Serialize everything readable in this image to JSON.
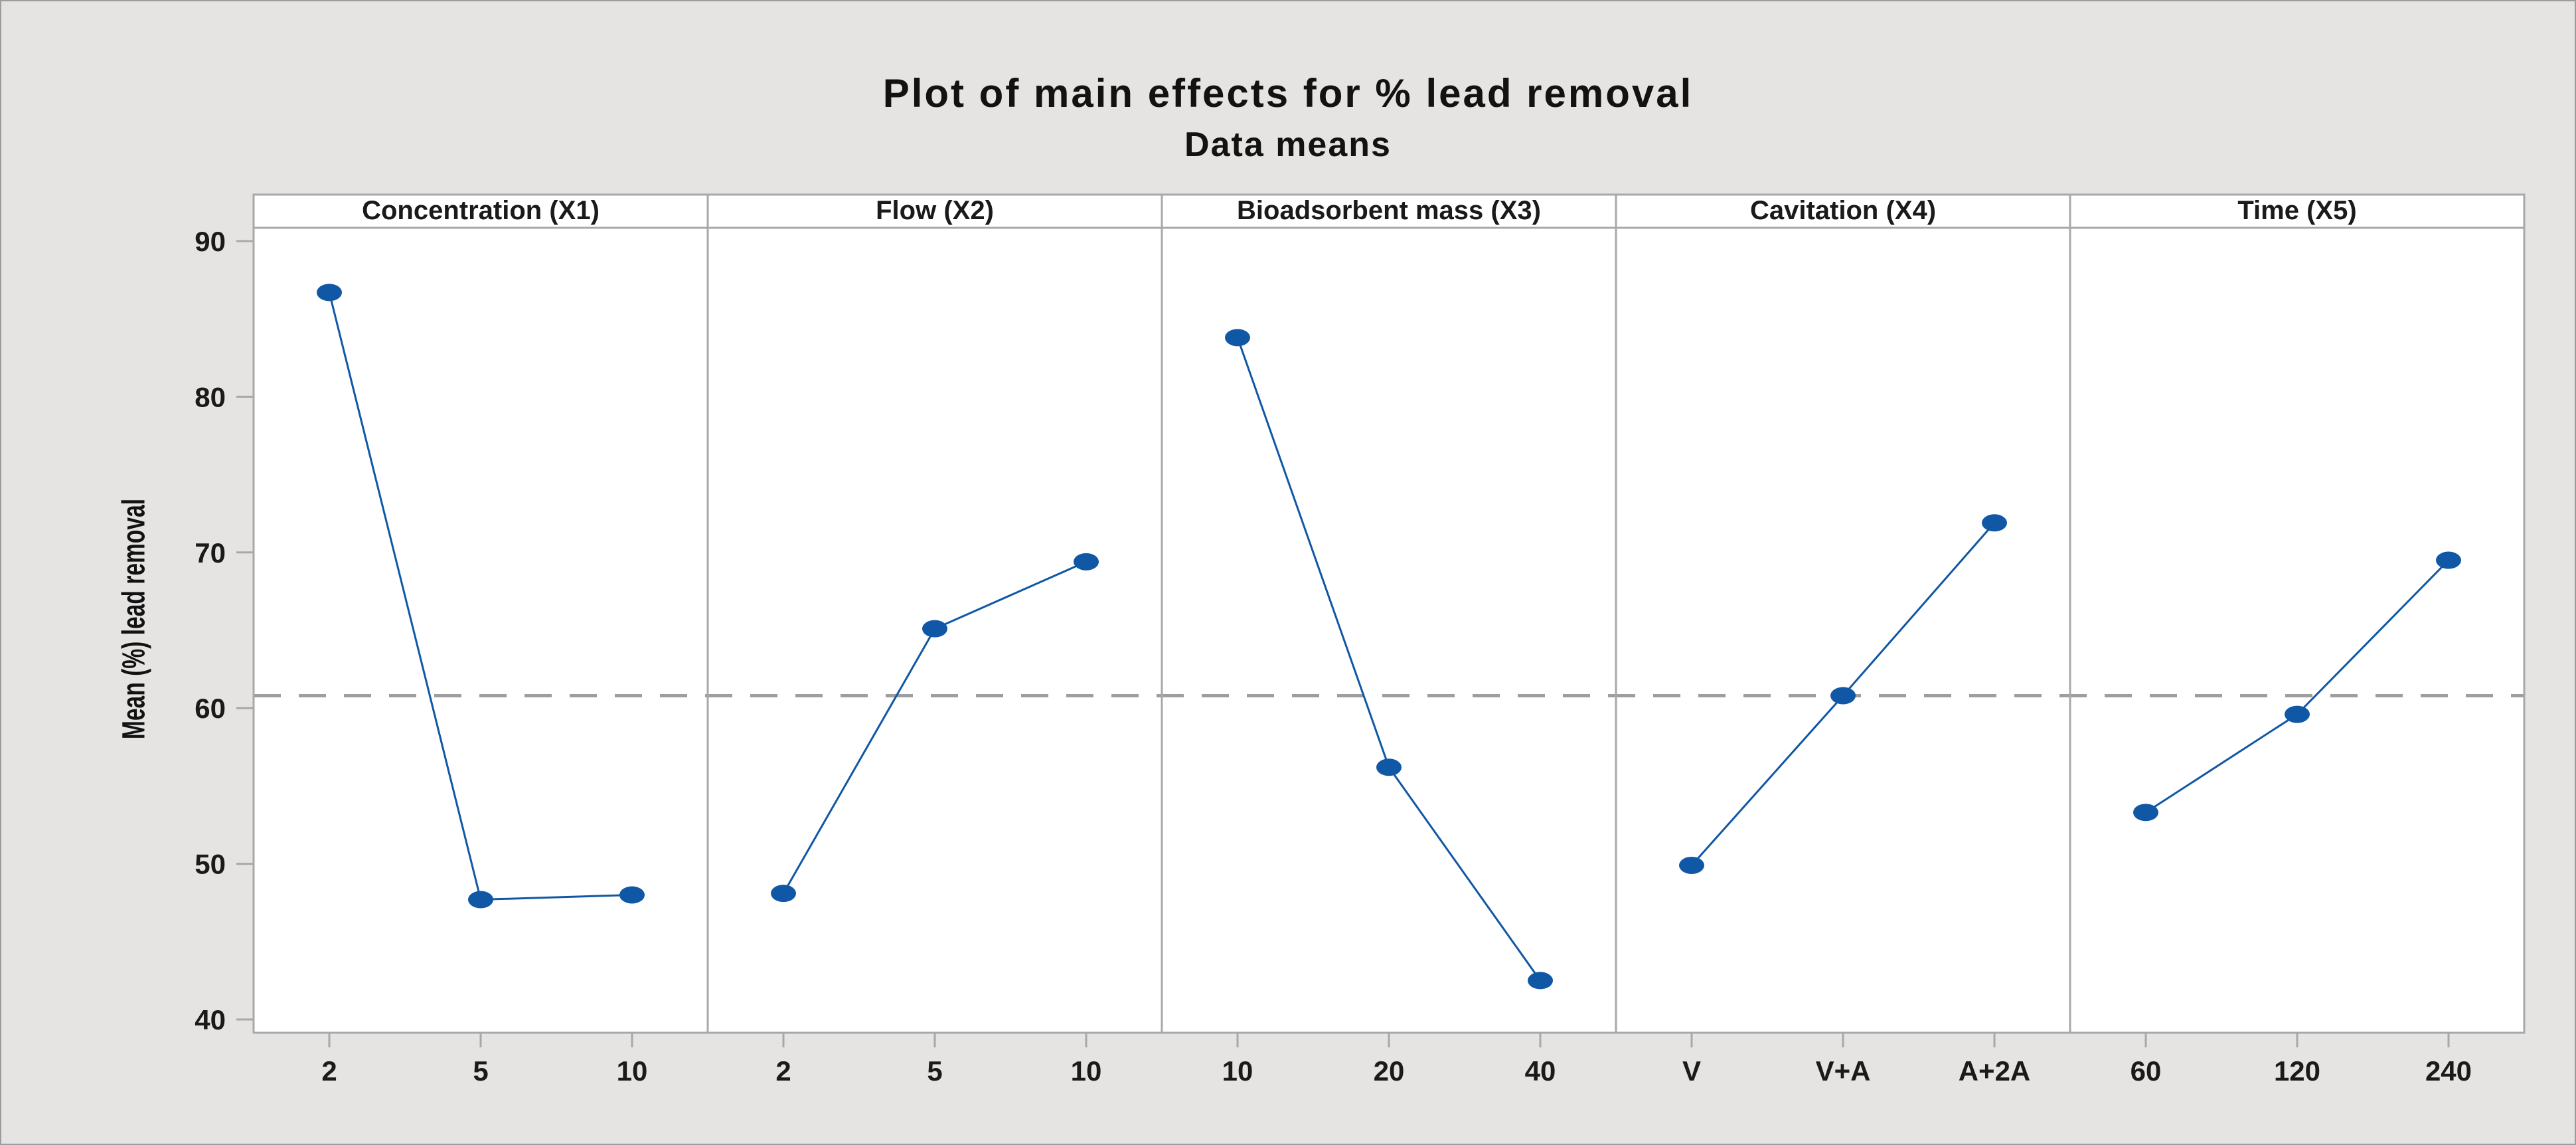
{
  "figure": {
    "title": "Plot of main effects for % lead removal",
    "subtitle": "Data means"
  },
  "chart_data": {
    "type": "line",
    "title": "Plot of main effects for % lead removal",
    "subtitle": "Data means",
    "ylabel": "Mean (%) lead removal",
    "ylim": [
      39.1,
      90.9
    ],
    "yticks": [
      40,
      50,
      60,
      70,
      80,
      90
    ],
    "grand_mean": 60.8,
    "grid": false,
    "legend": "none",
    "panels": [
      {
        "label": "Concentration (X1)",
        "categories": [
          "2",
          "5",
          "10"
        ],
        "values": [
          86.7,
          47.7,
          48.0
        ]
      },
      {
        "label": "Flow (X2)",
        "categories": [
          "2",
          "5",
          "10"
        ],
        "values": [
          48.1,
          65.1,
          69.4
        ]
      },
      {
        "label": "Bioadsorbent mass (X3)",
        "categories": [
          "10",
          "20",
          "40"
        ],
        "values": [
          83.8,
          56.2,
          42.5
        ]
      },
      {
        "label": "Cavitation (X4)",
        "categories": [
          "V",
          "V+A",
          "A+2A"
        ],
        "values": [
          49.9,
          60.8,
          71.9
        ]
      },
      {
        "label": "Time (X5)",
        "categories": [
          "60",
          "120",
          "240"
        ],
        "values": [
          53.3,
          59.6,
          69.5
        ]
      }
    ],
    "colors": {
      "series": "#1057a5",
      "marker": "#1057a5",
      "grand_mean_line": "#9e9e9e",
      "panel_border": "#a8a8a8",
      "panel_bg": "#ffffff",
      "figure_bg": "#e5e4e2",
      "text": "#1a1a1a"
    }
  }
}
